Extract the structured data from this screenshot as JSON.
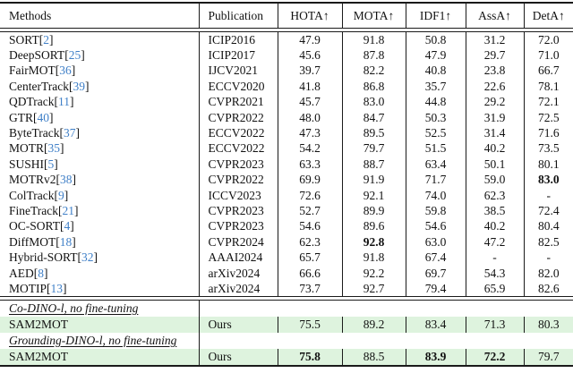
{
  "table": {
    "columns": [
      {
        "id": "methods",
        "label": "Methods"
      },
      {
        "id": "publication",
        "label": "Publication"
      },
      {
        "id": "hota",
        "label": "HOTA↑"
      },
      {
        "id": "mota",
        "label": "MOTA↑"
      },
      {
        "id": "idf1",
        "label": "IDF1↑"
      },
      {
        "id": "assa",
        "label": "AssA↑"
      },
      {
        "id": "deta",
        "label": "DetA↑"
      }
    ],
    "rows": [
      {
        "method": "SORT",
        "cite": "2",
        "pub": "ICIP2016",
        "values": [
          "47.9",
          "91.8",
          "50.8",
          "31.2",
          "72.0"
        ],
        "bold_values": []
      },
      {
        "method": "DeepSORT",
        "cite": "25",
        "pub": "ICIP2017",
        "values": [
          "45.6",
          "87.8",
          "47.9",
          "29.7",
          "71.0"
        ],
        "bold_values": []
      },
      {
        "method": "FairMOT",
        "cite": "36",
        "pub": "IJCV2021",
        "values": [
          "39.7",
          "82.2",
          "40.8",
          "23.8",
          "66.7"
        ],
        "bold_values": []
      },
      {
        "method": "CenterTrack",
        "cite": "39",
        "pub": "ECCV2020",
        "values": [
          "41.8",
          "86.8",
          "35.7",
          "22.6",
          "78.1"
        ],
        "bold_values": []
      },
      {
        "method": "QDTrack",
        "cite": "11",
        "pub": "CVPR2021",
        "values": [
          "45.7",
          "83.0",
          "44.8",
          "29.2",
          "72.1"
        ],
        "bold_values": []
      },
      {
        "method": "GTR",
        "cite": "40",
        "pub": "CVPR2022",
        "values": [
          "48.0",
          "84.7",
          "50.3",
          "31.9",
          "72.5"
        ],
        "bold_values": []
      },
      {
        "method": "ByteTrack",
        "cite": "37",
        "pub": "ECCV2022",
        "values": [
          "47.3",
          "89.5",
          "52.5",
          "31.4",
          "71.6"
        ],
        "bold_values": []
      },
      {
        "method": "MOTR",
        "cite": "35",
        "pub": "ECCV2022",
        "values": [
          "54.2",
          "79.7",
          "51.5",
          "40.2",
          "73.5"
        ],
        "bold_values": []
      },
      {
        "method": "SUSHI",
        "cite": "5",
        "pub": "CVPR2023",
        "values": [
          "63.3",
          "88.7",
          "63.4",
          "50.1",
          "80.1"
        ],
        "bold_values": []
      },
      {
        "method": "MOTRv2",
        "cite": "38",
        "pub": "CVPR2022",
        "values": [
          "69.9",
          "91.9",
          "71.7",
          "59.0",
          "83.0"
        ],
        "bold_values": [
          4
        ]
      },
      {
        "method": "ColTrack",
        "cite": "9",
        "pub": "ICCV2023",
        "values": [
          "72.6",
          "92.1",
          "74.0",
          "62.3",
          "-"
        ],
        "bold_values": []
      },
      {
        "method": "FineTrack",
        "cite": "21",
        "pub": "CVPR2023",
        "values": [
          "52.7",
          "89.9",
          "59.8",
          "38.5",
          "72.4"
        ],
        "bold_values": []
      },
      {
        "method": "OC-SORT",
        "cite": "4",
        "pub": "CVPR2023",
        "values": [
          "54.6",
          "89.6",
          "54.6",
          "40.2",
          "80.4"
        ],
        "bold_values": []
      },
      {
        "method": "DiffMOT",
        "cite": "18",
        "pub": "CVPR2024",
        "values": [
          "62.3",
          "92.8",
          "63.0",
          "47.2",
          "82.5"
        ],
        "bold_values": [
          1
        ]
      },
      {
        "method": "Hybrid-SORT",
        "cite": "32",
        "pub": "AAAI2024",
        "values": [
          "65.7",
          "91.8",
          "67.4",
          "-",
          "-"
        ],
        "bold_values": []
      },
      {
        "method": "AED",
        "cite": "8",
        "pub": "arXiv2024",
        "values": [
          "66.6",
          "92.2",
          "69.7",
          "54.3",
          "82.0"
        ],
        "bold_values": []
      },
      {
        "method": "MOTIP",
        "cite": "13",
        "pub": "arXiv2024",
        "values": [
          "73.7",
          "92.7",
          "79.4",
          "65.9",
          "82.6"
        ],
        "bold_values": []
      }
    ],
    "sections": [
      {
        "title": "Co-DINO-l, no fine-tuning",
        "row": {
          "method": "SAM2MOT",
          "pub": "Ours",
          "values": [
            "75.5",
            "89.2",
            "83.4",
            "71.3",
            "80.3"
          ],
          "bold_values": [],
          "highlight": true
        }
      },
      {
        "title": "Grounding-DINO-l, no fine-tuning",
        "row": {
          "method": "SAM2MOT",
          "pub": "Ours",
          "values": [
            "75.8",
            "88.5",
            "83.9",
            "72.2",
            "79.7"
          ],
          "bold_values": [
            0,
            2,
            3
          ],
          "highlight": true
        }
      }
    ],
    "colors": {
      "citation": "#4080c8",
      "highlight_row": "#def3de",
      "rule": "#1a1a1a"
    }
  }
}
